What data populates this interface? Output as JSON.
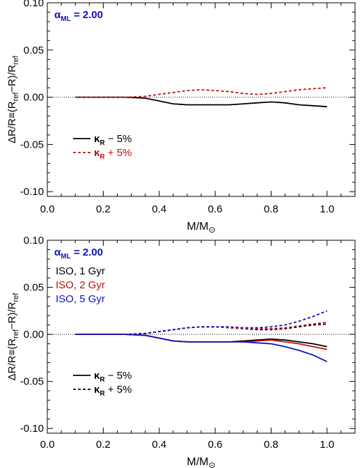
{
  "chart_data": [
    {
      "type": "line",
      "annotation": {
        "prefix": "α",
        "sub": "ML",
        "value": "= 2.00",
        "color": "#1010c0"
      },
      "xlabel": {
        "main": "M/M",
        "sub": "⊙"
      },
      "ylabel": {
        "main": "ΔR/R≡(R",
        "sub1": "ref",
        "mid": "−R)/R",
        "sub2": "ref"
      },
      "xlim": [
        0.0,
        1.1
      ],
      "ylim": [
        -0.105,
        0.1
      ],
      "xticks": [
        "0.0",
        "0.2",
        "0.4",
        "0.6",
        "0.8",
        "1.0"
      ],
      "yticks": [
        "-0.10",
        "-0.05",
        "0.00",
        "0.05",
        "0.10"
      ],
      "zero_line": true,
      "legend": [
        {
          "prefix": "κ",
          "sub": "R",
          "suffix": " − 5%",
          "color": "#000000",
          "dash": false
        },
        {
          "prefix": "κ",
          "sub": "R",
          "suffix": " + 5%",
          "color": "#c01010",
          "dash": true
        }
      ],
      "series": [
        {
          "name": "κR − 5%",
          "color": "#000000",
          "dash": false,
          "x": [
            0.1,
            0.2,
            0.28,
            0.35,
            0.4,
            0.45,
            0.5,
            0.55,
            0.6,
            0.65,
            0.7,
            0.75,
            0.8,
            0.85,
            0.9,
            0.95,
            1.0
          ],
          "y": [
            0.0,
            0.0,
            0.0,
            -0.001,
            -0.004,
            -0.007,
            -0.008,
            -0.008,
            -0.008,
            -0.008,
            -0.007,
            -0.006,
            -0.005,
            -0.006,
            -0.008,
            -0.009,
            -0.01
          ]
        },
        {
          "name": "κR + 5%",
          "color": "#c01010",
          "dash": true,
          "x": [
            0.1,
            0.2,
            0.28,
            0.35,
            0.4,
            0.45,
            0.5,
            0.55,
            0.6,
            0.65,
            0.7,
            0.75,
            0.8,
            0.85,
            0.9,
            0.95,
            1.0
          ],
          "y": [
            0.0,
            0.0,
            0.0,
            0.001,
            0.003,
            0.005,
            0.007,
            0.008,
            0.007,
            0.006,
            0.004,
            0.003,
            0.004,
            0.006,
            0.008,
            0.009,
            0.01
          ]
        }
      ]
    },
    {
      "type": "line",
      "annotation": {
        "prefix": "α",
        "sub": "ML",
        "value": "= 2.00",
        "color": "#1010c0"
      },
      "xlabel": {
        "main": "M/M",
        "sub": "⊙"
      },
      "ylabel": {
        "main": "ΔR/R≡(R",
        "sub1": "ref",
        "mid": "−R)/R",
        "sub2": "ref"
      },
      "xlim": [
        0.0,
        1.1
      ],
      "ylim": [
        -0.105,
        0.1
      ],
      "xticks": [
        "0.0",
        "0.2",
        "0.4",
        "0.6",
        "0.8",
        "1.0"
      ],
      "yticks": [
        "-0.10",
        "-0.05",
        "0.00",
        "0.05",
        "0.10"
      ],
      "zero_line": true,
      "iso_legend": [
        {
          "label": "ISO,   1 Gyr",
          "color": "#000000"
        },
        {
          "label": "ISO,   2 Gyr",
          "color": "#c01010"
        },
        {
          "label": "ISO,   5 Gyr",
          "color": "#1010c0"
        }
      ],
      "legend": [
        {
          "prefix": "κ",
          "sub": "R",
          "suffix": " − 5%",
          "color": "#000000",
          "dash": false
        },
        {
          "prefix": "κ",
          "sub": "R",
          "suffix": " + 5%",
          "color": "#000000",
          "dash": true
        }
      ],
      "series": [
        {
          "name": "ISO, 1 Gyr, κR − 5%",
          "color": "#000000",
          "dash": false,
          "x": [
            0.1,
            0.2,
            0.28,
            0.35,
            0.4,
            0.45,
            0.5,
            0.55,
            0.6,
            0.65,
            0.7,
            0.75,
            0.8,
            0.85,
            0.9,
            0.95,
            1.0
          ],
          "y": [
            0.0,
            0.0,
            0.0,
            -0.001,
            -0.004,
            -0.007,
            -0.008,
            -0.008,
            -0.008,
            -0.008,
            -0.007,
            -0.006,
            -0.005,
            -0.006,
            -0.008,
            -0.01,
            -0.013
          ]
        },
        {
          "name": "ISO, 2 Gyr, κR − 5%",
          "color": "#c01010",
          "dash": false,
          "x": [
            0.1,
            0.2,
            0.28,
            0.35,
            0.4,
            0.45,
            0.5,
            0.55,
            0.6,
            0.65,
            0.7,
            0.75,
            0.8,
            0.85,
            0.9,
            0.95,
            1.0
          ],
          "y": [
            0.0,
            0.0,
            0.0,
            -0.001,
            -0.004,
            -0.007,
            -0.008,
            -0.008,
            -0.008,
            -0.008,
            -0.008,
            -0.007,
            -0.006,
            -0.008,
            -0.01,
            -0.013,
            -0.016
          ]
        },
        {
          "name": "ISO, 5 Gyr, κR − 5%",
          "color": "#1010c0",
          "dash": false,
          "x": [
            0.1,
            0.2,
            0.28,
            0.35,
            0.4,
            0.45,
            0.5,
            0.55,
            0.6,
            0.65,
            0.7,
            0.75,
            0.8,
            0.85,
            0.9,
            0.95,
            1.0
          ],
          "y": [
            0.0,
            0.0,
            0.0,
            -0.001,
            -0.004,
            -0.007,
            -0.008,
            -0.008,
            -0.008,
            -0.008,
            -0.008,
            -0.009,
            -0.01,
            -0.013,
            -0.017,
            -0.022,
            -0.029
          ]
        },
        {
          "name": "ISO, 1 Gyr, κR + 5%",
          "color": "#000000",
          "dash": true,
          "x": [
            0.1,
            0.2,
            0.28,
            0.35,
            0.4,
            0.45,
            0.5,
            0.55,
            0.6,
            0.65,
            0.7,
            0.75,
            0.8,
            0.85,
            0.9,
            0.95,
            1.0
          ],
          "y": [
            0.0,
            0.0,
            0.0,
            0.001,
            0.003,
            0.005,
            0.007,
            0.008,
            0.008,
            0.007,
            0.006,
            0.005,
            0.005,
            0.006,
            0.008,
            0.01,
            0.011
          ]
        },
        {
          "name": "ISO, 2 Gyr, κR + 5%",
          "color": "#c01010",
          "dash": true,
          "x": [
            0.1,
            0.2,
            0.28,
            0.35,
            0.4,
            0.45,
            0.5,
            0.55,
            0.6,
            0.65,
            0.7,
            0.75,
            0.8,
            0.85,
            0.9,
            0.95,
            1.0
          ],
          "y": [
            0.0,
            0.0,
            0.0,
            0.001,
            0.003,
            0.005,
            0.007,
            0.008,
            0.008,
            0.007,
            0.006,
            0.006,
            0.006,
            0.007,
            0.009,
            0.011,
            0.013
          ]
        },
        {
          "name": "ISO, 5 Gyr, κR + 5%",
          "color": "#1010c0",
          "dash": true,
          "x": [
            0.1,
            0.2,
            0.28,
            0.35,
            0.4,
            0.45,
            0.5,
            0.55,
            0.6,
            0.65,
            0.7,
            0.75,
            0.8,
            0.85,
            0.9,
            0.95,
            1.0
          ],
          "y": [
            0.0,
            0.0,
            0.0,
            0.001,
            0.003,
            0.005,
            0.007,
            0.008,
            0.008,
            0.008,
            0.007,
            0.007,
            0.008,
            0.01,
            0.014,
            0.019,
            0.025
          ]
        }
      ]
    }
  ]
}
